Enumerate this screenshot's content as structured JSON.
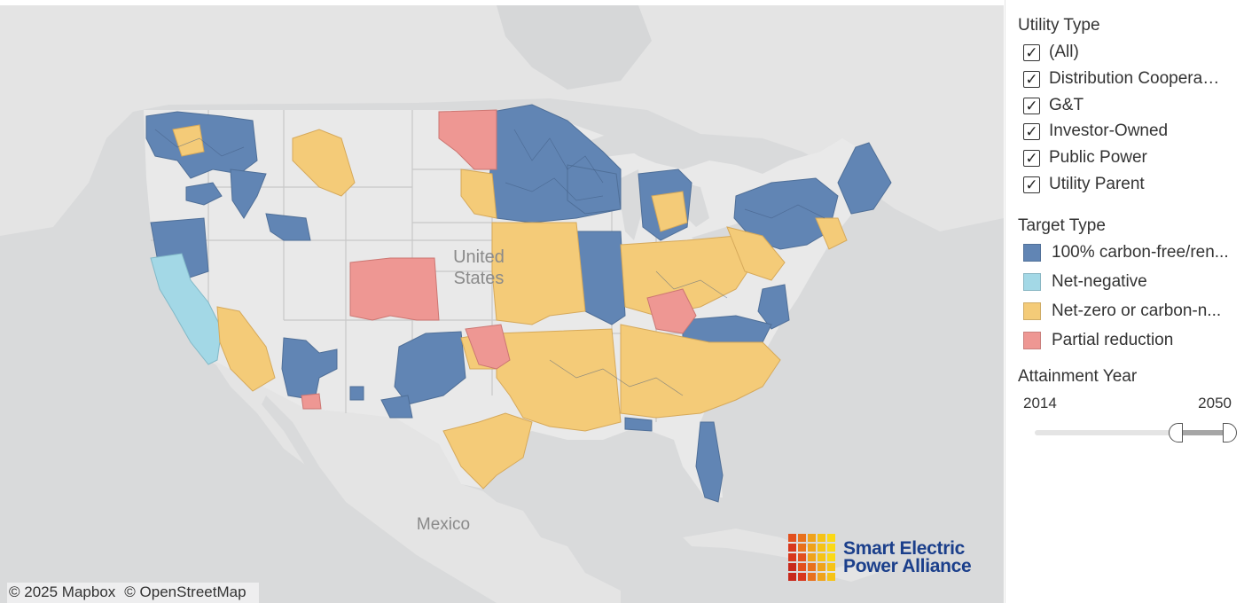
{
  "map": {
    "country_label_line1": "United",
    "country_label_line2": "States",
    "mexico_label": "Mexico",
    "attribution": [
      "© 2025 Mapbox",
      "© OpenStreetMap"
    ],
    "logo": {
      "line1": "Smart Electric",
      "line2": "Power Alliance"
    }
  },
  "filters": {
    "utility_type": {
      "title": "Utility Type",
      "options": [
        {
          "label": "(All)",
          "checked": true
        },
        {
          "label": "Distribution Coopera…",
          "checked": true
        },
        {
          "label": "G&T",
          "checked": true
        },
        {
          "label": "Investor-Owned",
          "checked": true
        },
        {
          "label": "Public Power",
          "checked": true
        },
        {
          "label": "Utility Parent",
          "checked": true
        }
      ]
    },
    "target_type": {
      "title": "Target Type",
      "items": [
        {
          "label": "100% carbon-free/ren...",
          "color": "#6185b4"
        },
        {
          "label": "Net-negative",
          "color": "#a3d8e6"
        },
        {
          "label": "Net-zero or carbon-n...",
          "color": "#f4cb78"
        },
        {
          "label": "Partial reduction",
          "color": "#ee9793"
        }
      ]
    },
    "attainment_year": {
      "title": "Attainment Year",
      "min_label": "2014",
      "max_label": "2050",
      "domain": [
        2014,
        2050
      ],
      "selected_range": [
        2040,
        2050
      ]
    }
  },
  "colors": {
    "land": "#e6e6e6",
    "water": "#d9dadb",
    "carbon_free": "#6185b4",
    "net_negative": "#a3d8e6",
    "net_zero": "#f4cb78",
    "partial": "#ee9793"
  }
}
